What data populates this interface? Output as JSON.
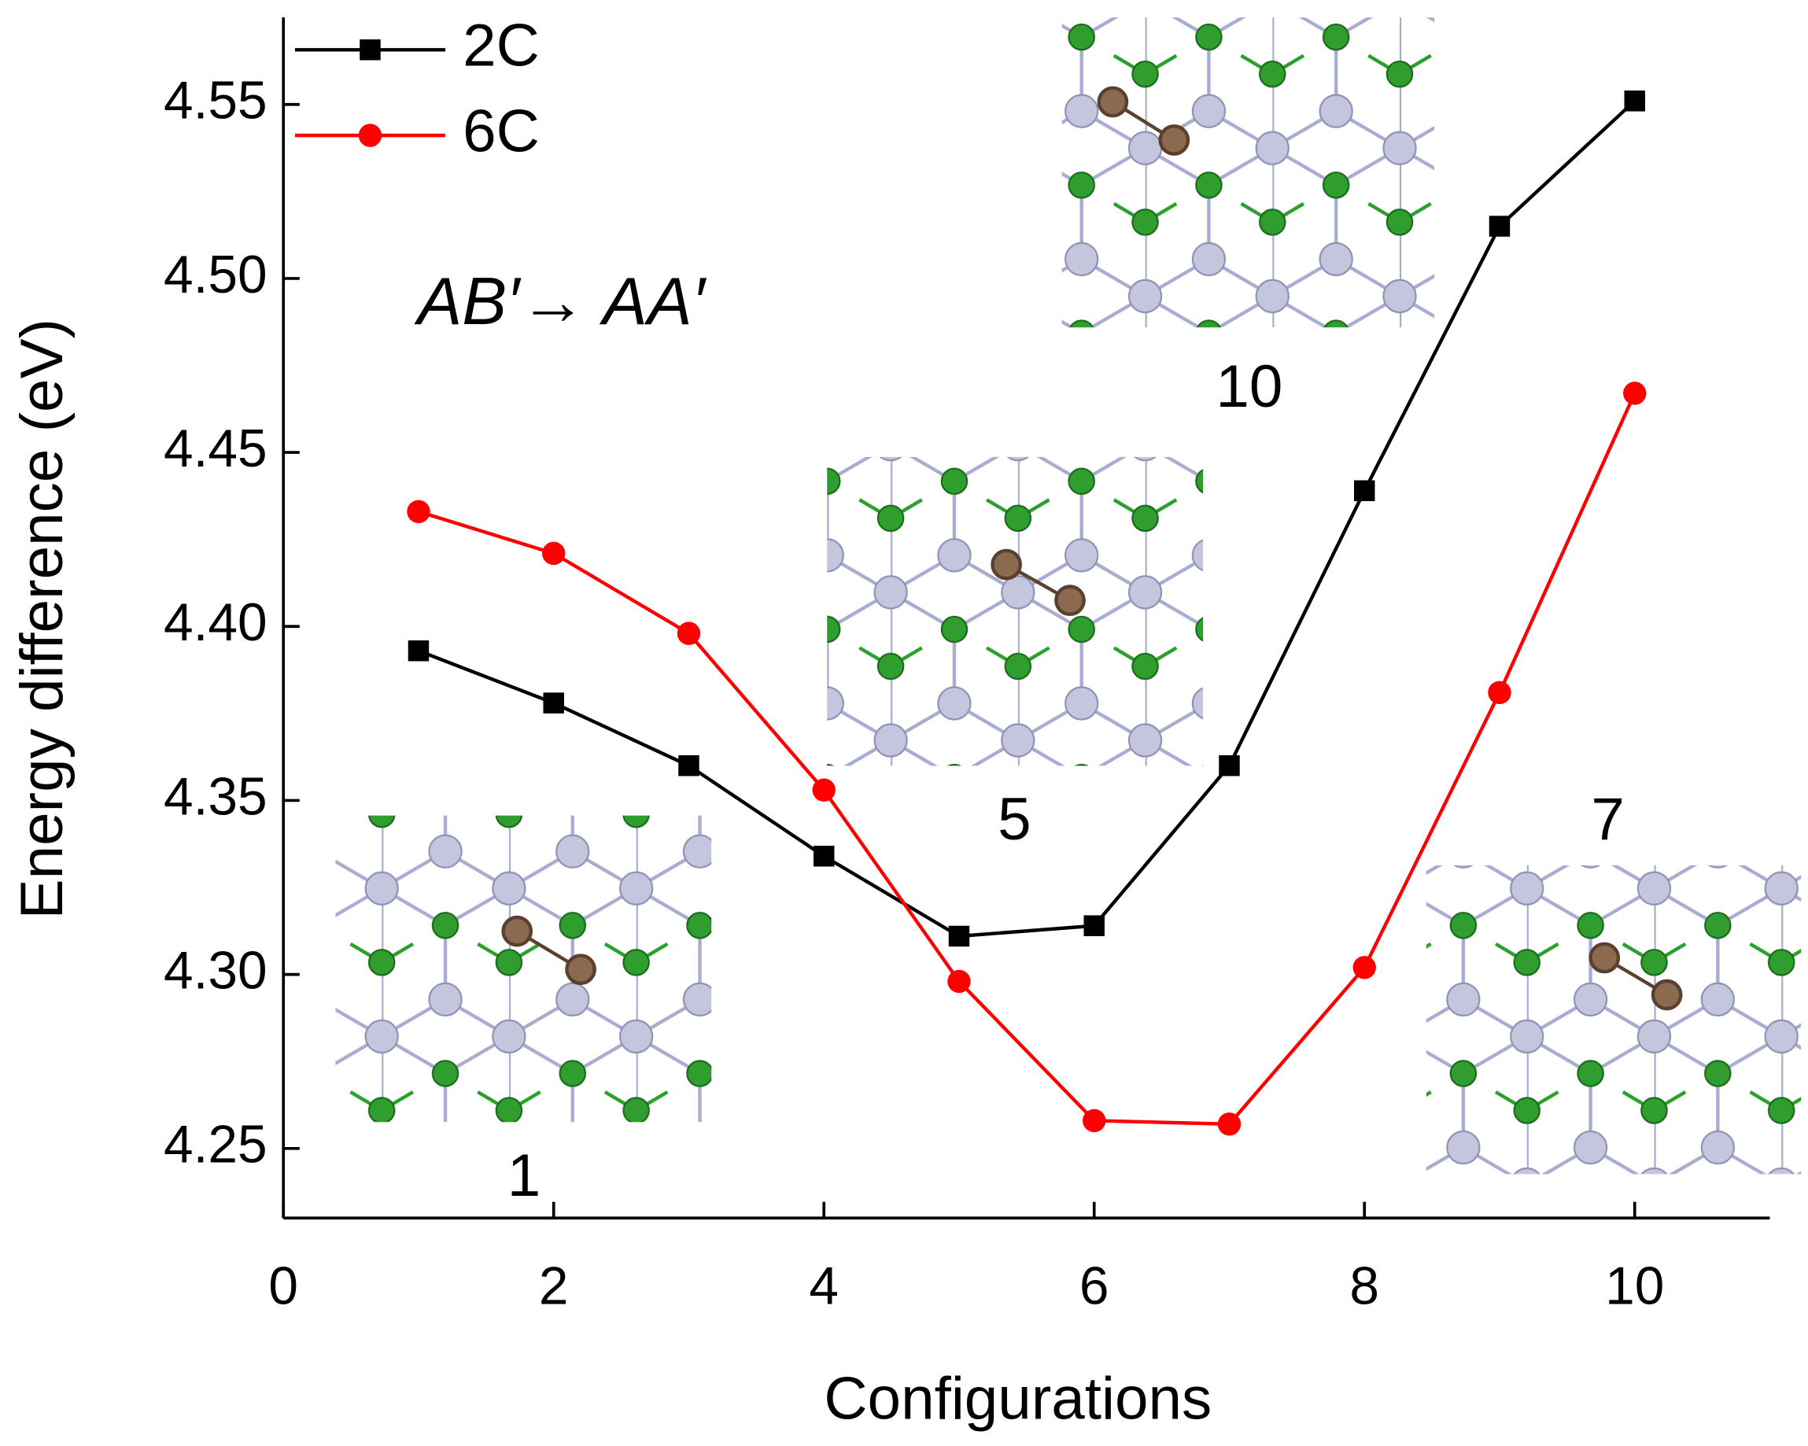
{
  "chart_data": {
    "type": "line",
    "xlabel": "Configurations",
    "ylabel": "Energy difference (eV)",
    "x": [
      1,
      2,
      3,
      4,
      5,
      6,
      7,
      8,
      9,
      10
    ],
    "series": [
      {
        "name": "2C",
        "color": "#000000",
        "marker": "square",
        "values": [
          4.393,
          4.378,
          4.36,
          4.334,
          4.311,
          4.314,
          4.36,
          4.439,
          4.515,
          4.551
        ]
      },
      {
        "name": "6C",
        "color": "#ff0000",
        "marker": "circle",
        "values": [
          4.433,
          4.421,
          4.398,
          4.353,
          4.298,
          4.258,
          4.257,
          4.302,
          4.381,
          4.467
        ]
      }
    ],
    "xlim": [
      0,
      11
    ],
    "xticks": [
      0,
      2,
      4,
      6,
      8,
      10
    ],
    "ylim": [
      4.23,
      4.575
    ],
    "yticks": [
      4.25,
      {
        "value": 4.3,
        "label": "4.30"
      },
      4.35,
      {
        "value": 4.4,
        "label": "4.40"
      },
      4.45,
      {
        "value": 4.5,
        "label": "4.50"
      },
      4.55
    ],
    "legend": "upper left",
    "annotations": [
      "AB′→ AA′",
      "1",
      "5",
      "10",
      "7"
    ]
  }
}
